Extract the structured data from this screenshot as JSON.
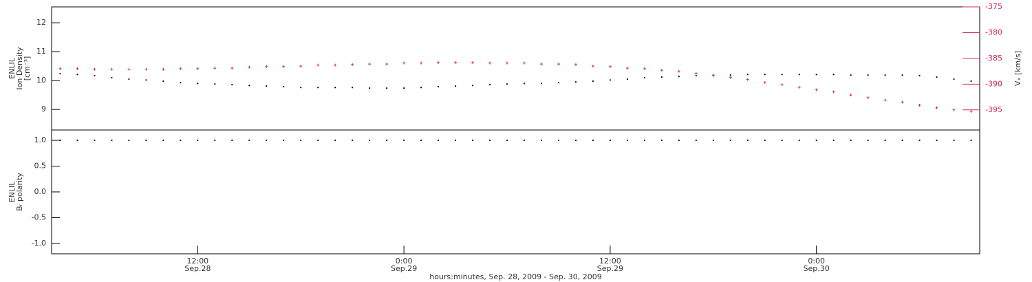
{
  "chart_data": [
    {
      "type": "scatter",
      "ylabel": [
        "ENLIL",
        "Ion Density",
        "[cm⁻³]"
      ],
      "y2label": "Vₓ [km/s]",
      "x": [
        4,
        5,
        6,
        7,
        8,
        9,
        10,
        11,
        12,
        13,
        14,
        15,
        16,
        17,
        18,
        19,
        20,
        21,
        22,
        23,
        24,
        25,
        26,
        27,
        28,
        29,
        30,
        31,
        32,
        33,
        34,
        35,
        36,
        37,
        38,
        39,
        40,
        41,
        42,
        43,
        44,
        45,
        46,
        47,
        48,
        49,
        50,
        51,
        52,
        53,
        54,
        55,
        56,
        57
      ],
      "xlim": [
        3.5,
        57.5
      ],
      "ylim": [
        8.29,
        12.55
      ],
      "yticks": [
        9,
        10,
        11,
        12
      ],
      "y2lim": [
        -398.9,
        -375
      ],
      "y2ticks": [
        -395,
        -390,
        -385,
        -380,
        -375
      ],
      "y2color": "#d6245a",
      "series": [
        {
          "color": "#000000",
          "marker": "dot",
          "values": [
            10.24,
            10.21,
            10.17,
            10.1,
            10.05,
            10.02,
            9.98,
            9.93,
            9.9,
            9.88,
            9.86,
            9.83,
            9.81,
            9.79,
            9.76,
            9.76,
            9.76,
            9.76,
            9.74,
            9.74,
            9.74,
            9.76,
            9.79,
            9.81,
            9.83,
            9.86,
            9.88,
            9.9,
            9.9,
            9.93,
            9.95,
            9.98,
            10.02,
            10.05,
            10.1,
            10.12,
            10.14,
            10.17,
            10.19,
            10.19,
            10.21,
            10.21,
            10.21,
            10.21,
            10.21,
            10.21,
            10.19,
            10.19,
            10.19,
            10.19,
            10.17,
            10.12,
            10.05,
            9.98
          ]
        },
        {
          "color": "#d6245a",
          "marker": "plus",
          "axis": "y2",
          "values": [
            -387.0,
            -387.0,
            -387.1,
            -387.1,
            -387.1,
            -387.1,
            -387.1,
            -387.0,
            -387.0,
            -386.9,
            -386.9,
            -386.7,
            -386.6,
            -386.6,
            -386.5,
            -386.3,
            -386.3,
            -386.2,
            -386.1,
            -386.1,
            -385.9,
            -385.9,
            -385.8,
            -385.8,
            -385.8,
            -385.9,
            -385.9,
            -385.9,
            -386.1,
            -386.1,
            -386.2,
            -386.5,
            -386.6,
            -386.9,
            -387.0,
            -387.3,
            -387.5,
            -387.9,
            -388.3,
            -388.7,
            -389.1,
            -389.7,
            -390.1,
            -390.6,
            -391.1,
            -391.5,
            -392.1,
            -392.6,
            -393.1,
            -393.5,
            -394.1,
            -394.6,
            -395.0,
            -395.3
          ]
        }
      ]
    },
    {
      "type": "scatter",
      "ylabel": [
        "ENLIL",
        "Bᵣ polarity"
      ],
      "xlabel": "hours:minutes, Sep. 28, 2009 - Sep. 30, 2009",
      "x": [
        4,
        5,
        6,
        7,
        8,
        9,
        10,
        11,
        12,
        13,
        14,
        15,
        16,
        17,
        18,
        19,
        20,
        21,
        22,
        23,
        24,
        25,
        26,
        27,
        28,
        29,
        30,
        31,
        32,
        33,
        34,
        35,
        36,
        37,
        38,
        39,
        40,
        41,
        42,
        43,
        44,
        45,
        46,
        47,
        48,
        49,
        50,
        51,
        52,
        53,
        54,
        55,
        56,
        57
      ],
      "xlim": [
        3.5,
        57.5
      ],
      "xticks": [
        {
          "value": 12,
          "label": "12:00"
        },
        {
          "value": 24,
          "label": "0:00"
        },
        {
          "value": 36,
          "label": "12:00"
        },
        {
          "value": 48,
          "label": "0:00"
        }
      ],
      "xtick_dates": [
        "Sep.28",
        "Sep.29",
        "Sep.29",
        "Sep.30"
      ],
      "ylim": [
        -1.2,
        1.2
      ],
      "yticks": [
        {
          "value": -1,
          "label": "-1.0"
        },
        {
          "value": -0.5,
          "label": "-0.5"
        },
        {
          "value": 0,
          "label": "0.0"
        },
        {
          "value": 0.5,
          "label": "0.5"
        },
        {
          "value": 1,
          "label": "1.0"
        }
      ],
      "series": [
        {
          "color": "#000000",
          "marker": "dot",
          "values": [
            1,
            1,
            1,
            1,
            1,
            1,
            1,
            1,
            1,
            1,
            1,
            1,
            1,
            1,
            1,
            1,
            1,
            1,
            1,
            1,
            1,
            1,
            1,
            1,
            1,
            1,
            1,
            1,
            1,
            1,
            1,
            1,
            1,
            1,
            1,
            1,
            1,
            1,
            1,
            1,
            1,
            1,
            1,
            1,
            1,
            1,
            1,
            1,
            1,
            1,
            1,
            1,
            1,
            1
          ]
        }
      ]
    }
  ]
}
